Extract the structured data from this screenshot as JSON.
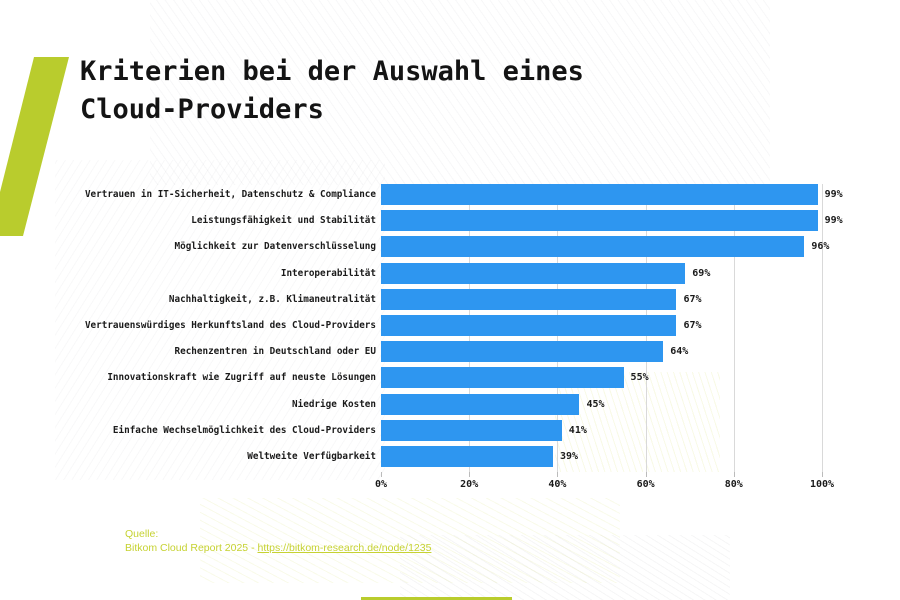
{
  "colors": {
    "bar": "#2e96f0",
    "accent_shape": "#b9cc2d",
    "source_text": "#c6d232",
    "grid": "#d9d9d9",
    "text": "#1a1a1a"
  },
  "header": {
    "title": "Kriterien bei der Auswahl eines Cloud-Providers"
  },
  "chart_data": {
    "type": "bar",
    "orientation": "horizontal",
    "title": "Kriterien bei der Auswahl eines Cloud-Providers",
    "categories": [
      "Vertrauen in IT-Sicherheit, Datenschutz & Compliance",
      "Leistungsfähigkeit und Stabilität",
      "Möglichkeit zur Datenverschlüsselung",
      "Interoperabilität",
      "Nachhaltigkeit, z.B. Klimaneutralität",
      "Vertrauenswürdiges Herkunftsland des Cloud-Providers",
      "Rechenzentren in Deutschland oder EU",
      "Innovationskraft wie Zugriff auf neuste Lösungen",
      "Niedrige Kosten",
      "Einfache Wechselmöglichkeit des Cloud-Providers",
      "Weltweite Verfügbarkeit"
    ],
    "values": [
      99,
      99,
      96,
      69,
      67,
      67,
      64,
      55,
      45,
      41,
      39
    ],
    "unit": "%",
    "x_ticks": [
      "0%",
      "20%",
      "40%",
      "60%",
      "80%",
      "100%"
    ],
    "x_tick_values": [
      0,
      20,
      40,
      60,
      80,
      100
    ],
    "xlim": [
      0,
      100
    ],
    "grid": "vertical",
    "legend": "none",
    "bar_color": "#2e96f0"
  },
  "source": {
    "label": "Quelle:",
    "text": "Bitkom Cloud Report 2025 - ",
    "link": "https://bitkom-research.de/node/1235"
  }
}
